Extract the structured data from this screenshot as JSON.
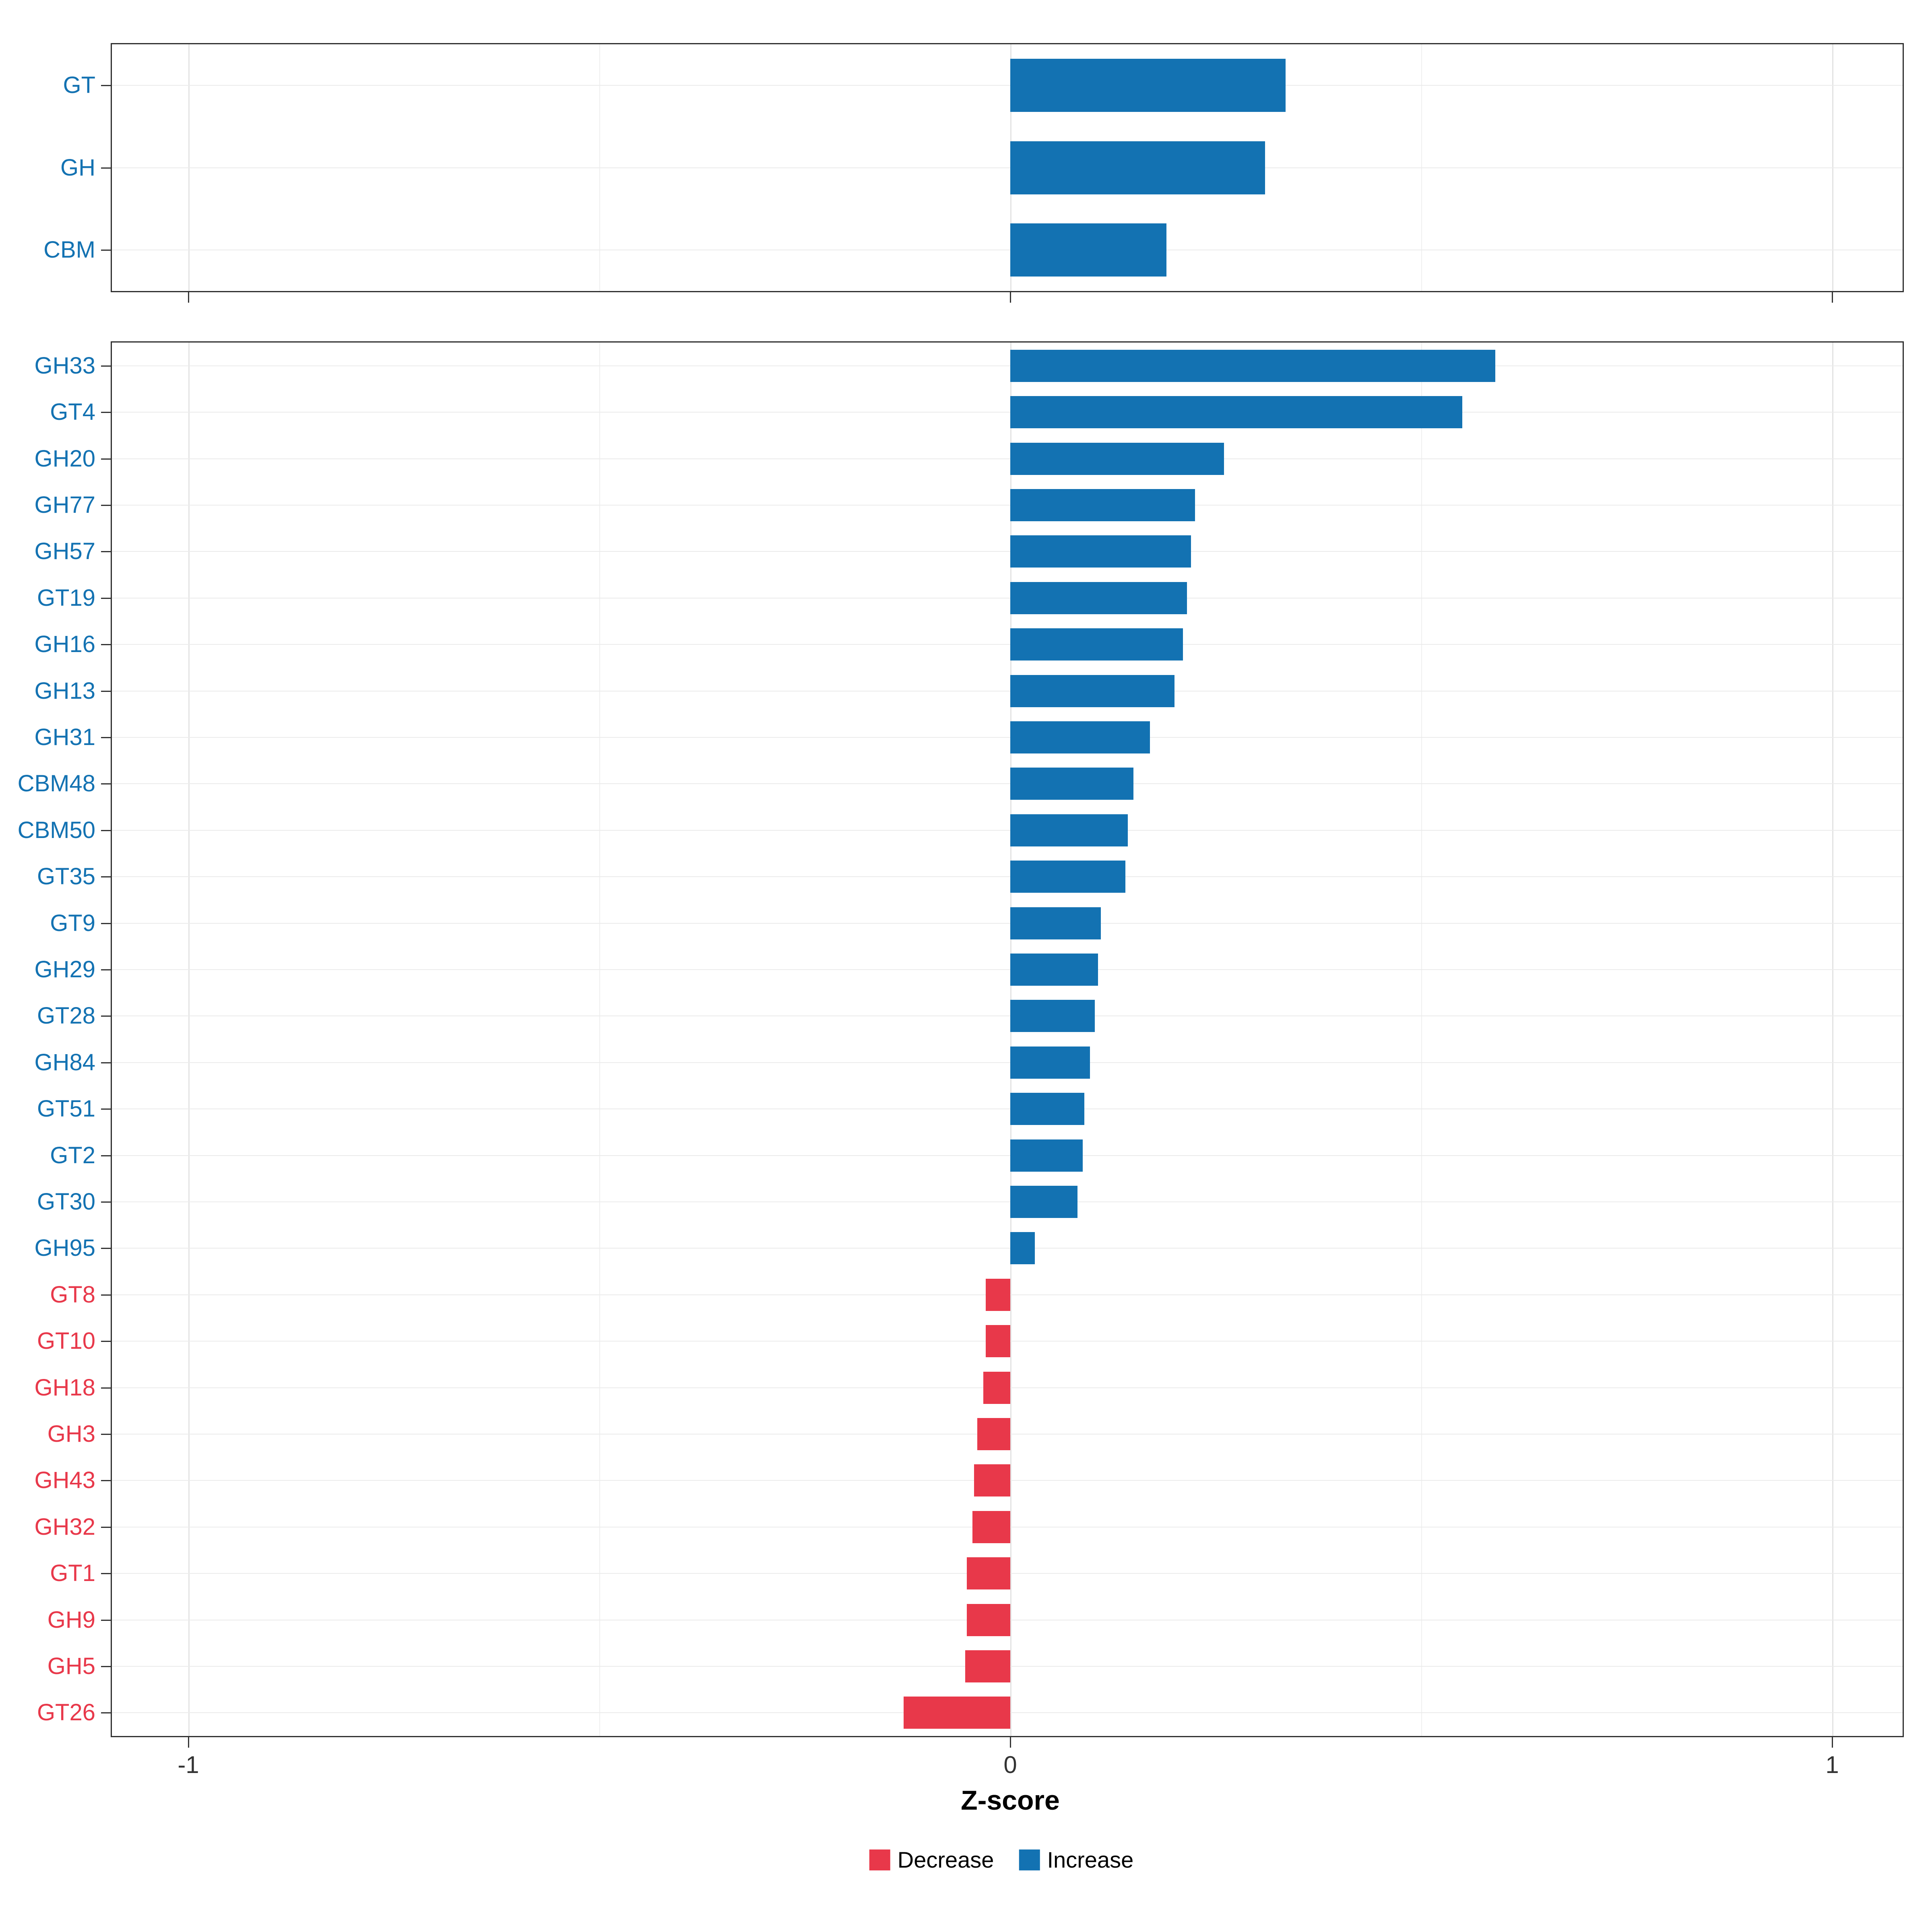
{
  "chart_data": {
    "type": "bar",
    "orientation": "horizontal",
    "title": "",
    "xlabel": "Z-score",
    "ylabel": "",
    "xlim": [
      -1.09,
      1.09
    ],
    "x_ticks": [
      -1,
      0,
      1
    ],
    "grid": true,
    "legend_position": "bottom",
    "legend": [
      {
        "label": "Decrease",
        "color": "#e8384a"
      },
      {
        "label": "Increase",
        "color": "#1372b2"
      }
    ],
    "panels": [
      {
        "name": "summary-panel",
        "categories": [
          "GT",
          "GH",
          "CBM"
        ],
        "values": [
          0.335,
          0.31,
          0.19
        ]
      },
      {
        "name": "family-panel",
        "categories": [
          "GH33",
          "GT4",
          "GH20",
          "GH77",
          "GH57",
          "GT19",
          "GH16",
          "GH13",
          "GH31",
          "CBM48",
          "CBM50",
          "GT35",
          "GT9",
          "GH29",
          "GT28",
          "GH84",
          "GT51",
          "GT2",
          "GT30",
          "GH95",
          "GT8",
          "GT10",
          "GH18",
          "GH3",
          "GH43",
          "GH32",
          "GT1",
          "GH9",
          "GH5",
          "GT26"
        ],
        "values": [
          0.59,
          0.55,
          0.26,
          0.225,
          0.22,
          0.215,
          0.21,
          0.2,
          0.17,
          0.15,
          0.143,
          0.14,
          0.11,
          0.107,
          0.103,
          0.097,
          0.09,
          0.088,
          0.082,
          0.03,
          -0.03,
          -0.03,
          -0.033,
          -0.04,
          -0.044,
          -0.046,
          -0.053,
          -0.053,
          -0.055,
          -0.13
        ]
      }
    ]
  }
}
